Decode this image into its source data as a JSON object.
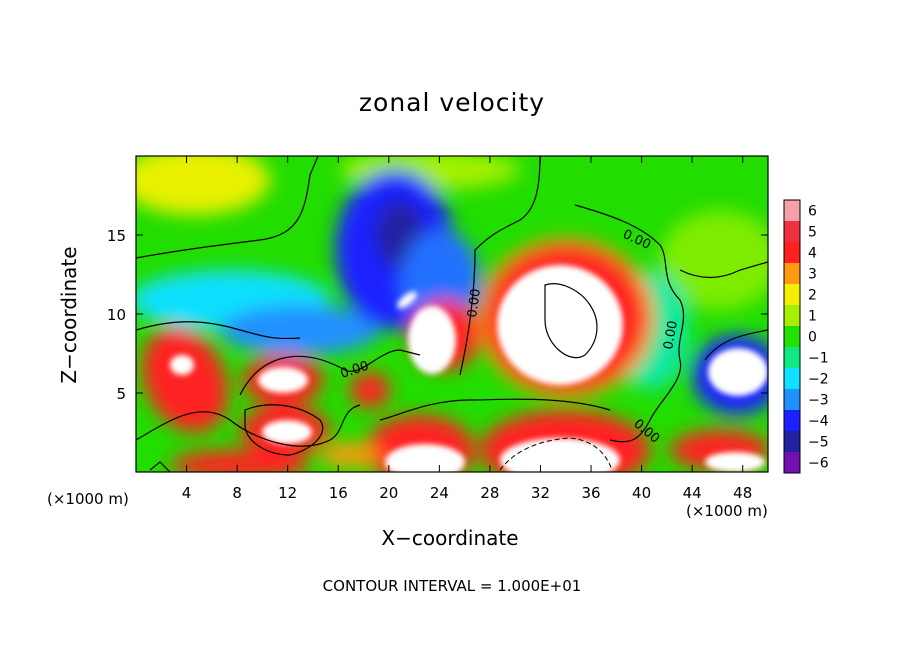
{
  "chart_data": {
    "type": "heatmap",
    "title": "zonal velocity",
    "xlabel": "X−coordinate",
    "ylabel": "Z−coordinate",
    "x_unit": "(×1000 m)",
    "y_unit": "(×1000 m)",
    "xlim": [
      0,
      50
    ],
    "ylim": [
      0,
      20
    ],
    "xticks": [
      4,
      8,
      12,
      16,
      20,
      24,
      28,
      32,
      36,
      40,
      44,
      48
    ],
    "yticks": [
      5,
      10,
      15
    ],
    "colorbar": {
      "ticks": [
        6,
        5,
        4,
        3,
        2,
        1,
        0,
        -1,
        -2,
        -3,
        -4,
        -5,
        -6
      ],
      "colors": [
        "#f4a0a8",
        "#ee3040",
        "#ff2020",
        "#ff9a10",
        "#f2f000",
        "#a4f000",
        "#22e000",
        "#10e880",
        "#10e0ff",
        "#2090ff",
        "#1a20ff",
        "#2020a0",
        "#7010b0"
      ]
    },
    "contour_label": "0.00",
    "footer": "CONTOUR INTERVAL = 1.000E+01",
    "features": [
      {
        "kind": "positive-core",
        "x": [
          29,
          39
        ],
        "z": [
          5,
          12.5
        ],
        "value": "> 6"
      },
      {
        "kind": "positive-core",
        "x": [
          20.5,
          25
        ],
        "z": [
          5.5,
          9.5
        ],
        "value": "> 6"
      },
      {
        "kind": "negative-core",
        "x": [
          14,
          26
        ],
        "z": [
          10,
          18
        ],
        "value": "about -5"
      },
      {
        "kind": "positive-core",
        "x": [
          11,
          14
        ],
        "z": [
          5,
          7
        ],
        "value": "> 6"
      },
      {
        "kind": "positive-core",
        "x": [
          10,
          13
        ],
        "z": [
          1.5,
          3.5
        ],
        "value": "> 6"
      }
    ]
  }
}
